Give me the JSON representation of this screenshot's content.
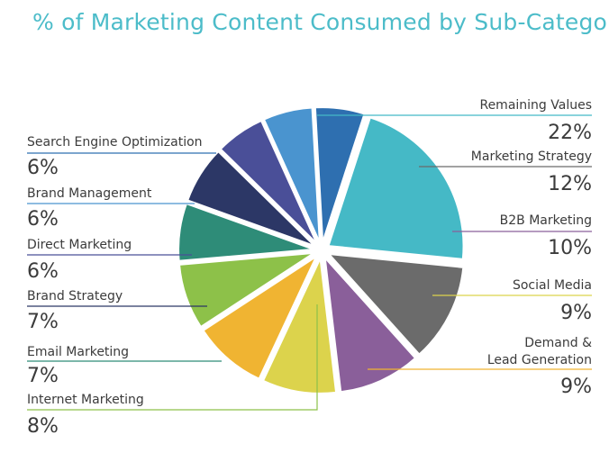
{
  "title": "% of Marketing Content Consumed by Sub-Category",
  "chart_data": {
    "type": "pie",
    "title": "% of Marketing Content Consumed by Sub-Category",
    "legend": "leader-line labels around pie",
    "slices": [
      {
        "label": "Remaining Values",
        "value": 22,
        "value_label": "22%",
        "color": "#45b9c6"
      },
      {
        "label": "Marketing Strategy",
        "value": 12,
        "value_label": "12%",
        "color": "#6b6b6b"
      },
      {
        "label": "B2B Marketing",
        "value": 10,
        "value_label": "10%",
        "color": "#8a5f9a"
      },
      {
        "label": "Social Media",
        "value": 9,
        "value_label": "9%",
        "color": "#dcd34c"
      },
      {
        "label": "Demand & Lead Generation",
        "label_lines": [
          "Demand &",
          "Lead Generation"
        ],
        "value": 9,
        "value_label": "9%",
        "color": "#f0b432"
      },
      {
        "label": "Internet Marketing",
        "value": 8,
        "value_label": "8%",
        "color": "#8dc149"
      },
      {
        "label": "Email Marketing",
        "value": 7,
        "value_label": "7%",
        "color": "#2e8c78"
      },
      {
        "label": "Brand Strategy",
        "value": 7,
        "value_label": "7%",
        "color": "#2c3766"
      },
      {
        "label": "Direct Marketing",
        "value": 6,
        "value_label": "6%",
        "color": "#4a4f98"
      },
      {
        "label": "Brand Management",
        "value": 6,
        "value_label": "6%",
        "color": "#4a94cf"
      },
      {
        "label": "Search Engine Optimization",
        "value": 6,
        "value_label": "6%",
        "color": "#2e6fb0"
      }
    ]
  }
}
